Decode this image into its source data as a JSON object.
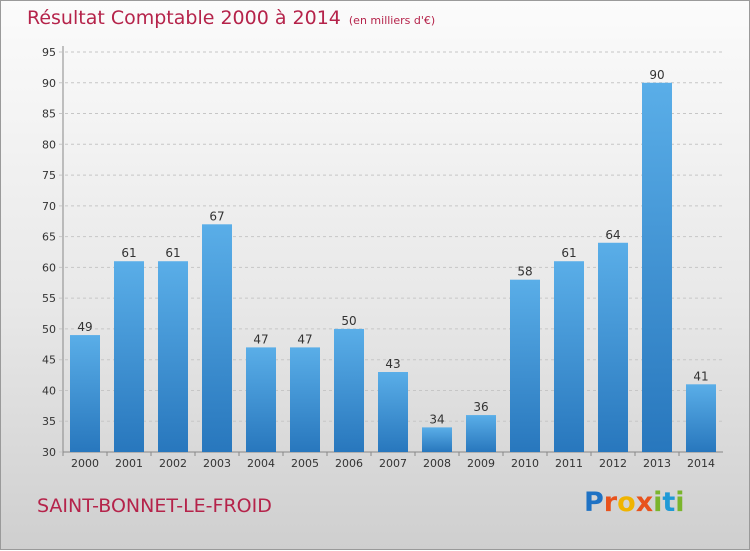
{
  "header": {
    "title": "Résultat Comptable 2000 à 2014",
    "subtitle": "(en milliers d'€)"
  },
  "footer": {
    "town": "SAINT-BONNET-LE-FROID",
    "logo_text": "Proxiti"
  },
  "colors": {
    "bar": "#3d93d9",
    "accent": "#b5234a"
  },
  "chart_data": {
    "type": "bar",
    "categories": [
      "2000",
      "2001",
      "2002",
      "2003",
      "2004",
      "2005",
      "2006",
      "2007",
      "2008",
      "2009",
      "2010",
      "2011",
      "2012",
      "2013",
      "2014"
    ],
    "values": [
      49,
      61,
      61,
      67,
      47,
      47,
      50,
      43,
      34,
      36,
      58,
      61,
      64,
      90,
      41
    ],
    "title": "Résultat Comptable 2000 à 2014",
    "ylim": [
      30,
      95
    ],
    "yticks": [
      30,
      35,
      40,
      45,
      50,
      55,
      60,
      65,
      70,
      75,
      80,
      85,
      90,
      95
    ],
    "grid": true,
    "data_labels": true
  }
}
